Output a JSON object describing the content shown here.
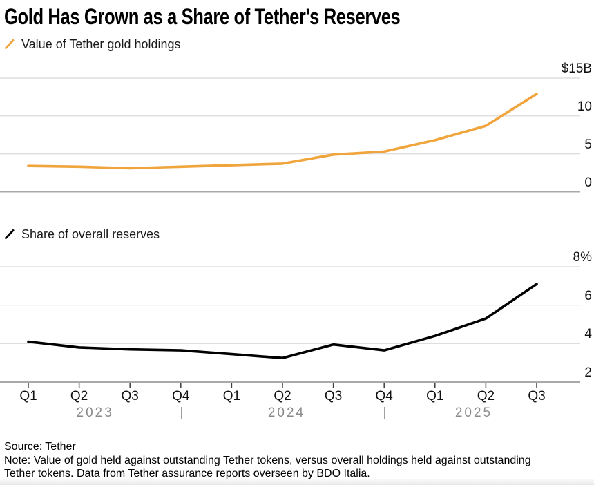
{
  "title": "Gold Has Grown as a Share of Tether's Reserves",
  "source_label": "Source: Tether",
  "note_lines": [
    "Note: Value of gold held against outstanding Tether tokens, versus overall holdings held against outstanding",
    "Tether tokens. Data from Tether assurance reports overseen by BDO Italia."
  ],
  "colors": {
    "gold_line": "#F0A43C",
    "share_line": "#000000",
    "gridline": "#D8D8D8",
    "axis_line": "#A9A9A9",
    "tick_mark": "#3D3D3D",
    "year_text": "#8A8A8A"
  },
  "x_axis": {
    "quarter_labels": [
      "Q1",
      "Q2",
      "Q3",
      "Q4",
      "Q1",
      "Q2",
      "Q3",
      "Q4",
      "Q1",
      "Q2",
      "Q3"
    ],
    "year_labels": [
      "2023",
      "2024",
      "2025"
    ],
    "year_separator": "|"
  },
  "chart_data": [
    {
      "type": "line",
      "name": "tether-gold-holdings-value",
      "legend": "Value of Tether gold holdings",
      "unit": "$B",
      "color": "#F0A43C",
      "categories": [
        "Q1 2023",
        "Q2 2023",
        "Q3 2023",
        "Q4 2023",
        "Q1 2024",
        "Q2 2024",
        "Q3 2024",
        "Q4 2024",
        "Q1 2025",
        "Q2 2025",
        "Q3 2025"
      ],
      "values": [
        3.4,
        3.3,
        3.1,
        3.3,
        3.5,
        3.7,
        4.9,
        5.3,
        6.8,
        8.7,
        12.9
      ],
      "ylim": [
        0,
        15
      ],
      "grid": true,
      "legend_position": "top-left",
      "yticks": [
        {
          "value": 15,
          "label": "$15B"
        },
        {
          "value": 10,
          "label": "10"
        },
        {
          "value": 5,
          "label": "5"
        },
        {
          "value": 0,
          "label": "0"
        }
      ]
    },
    {
      "type": "line",
      "name": "gold-share-of-reserves",
      "legend": "Share of overall reserves",
      "unit": "%",
      "color": "#000000",
      "categories": [
        "Q1 2023",
        "Q2 2023",
        "Q3 2023",
        "Q4 2023",
        "Q1 2024",
        "Q2 2024",
        "Q3 2024",
        "Q4 2024",
        "Q1 2025",
        "Q2 2025",
        "Q3 2025"
      ],
      "values": [
        4.1,
        3.8,
        3.7,
        3.65,
        3.45,
        3.25,
        3.95,
        3.65,
        4.4,
        5.3,
        7.1
      ],
      "ylim": [
        2,
        8
      ],
      "grid": true,
      "legend_position": "top-left",
      "yticks": [
        {
          "value": 8,
          "label": "8%"
        },
        {
          "value": 6,
          "label": "6"
        },
        {
          "value": 4,
          "label": "4"
        },
        {
          "value": 2,
          "label": "2"
        }
      ]
    }
  ]
}
